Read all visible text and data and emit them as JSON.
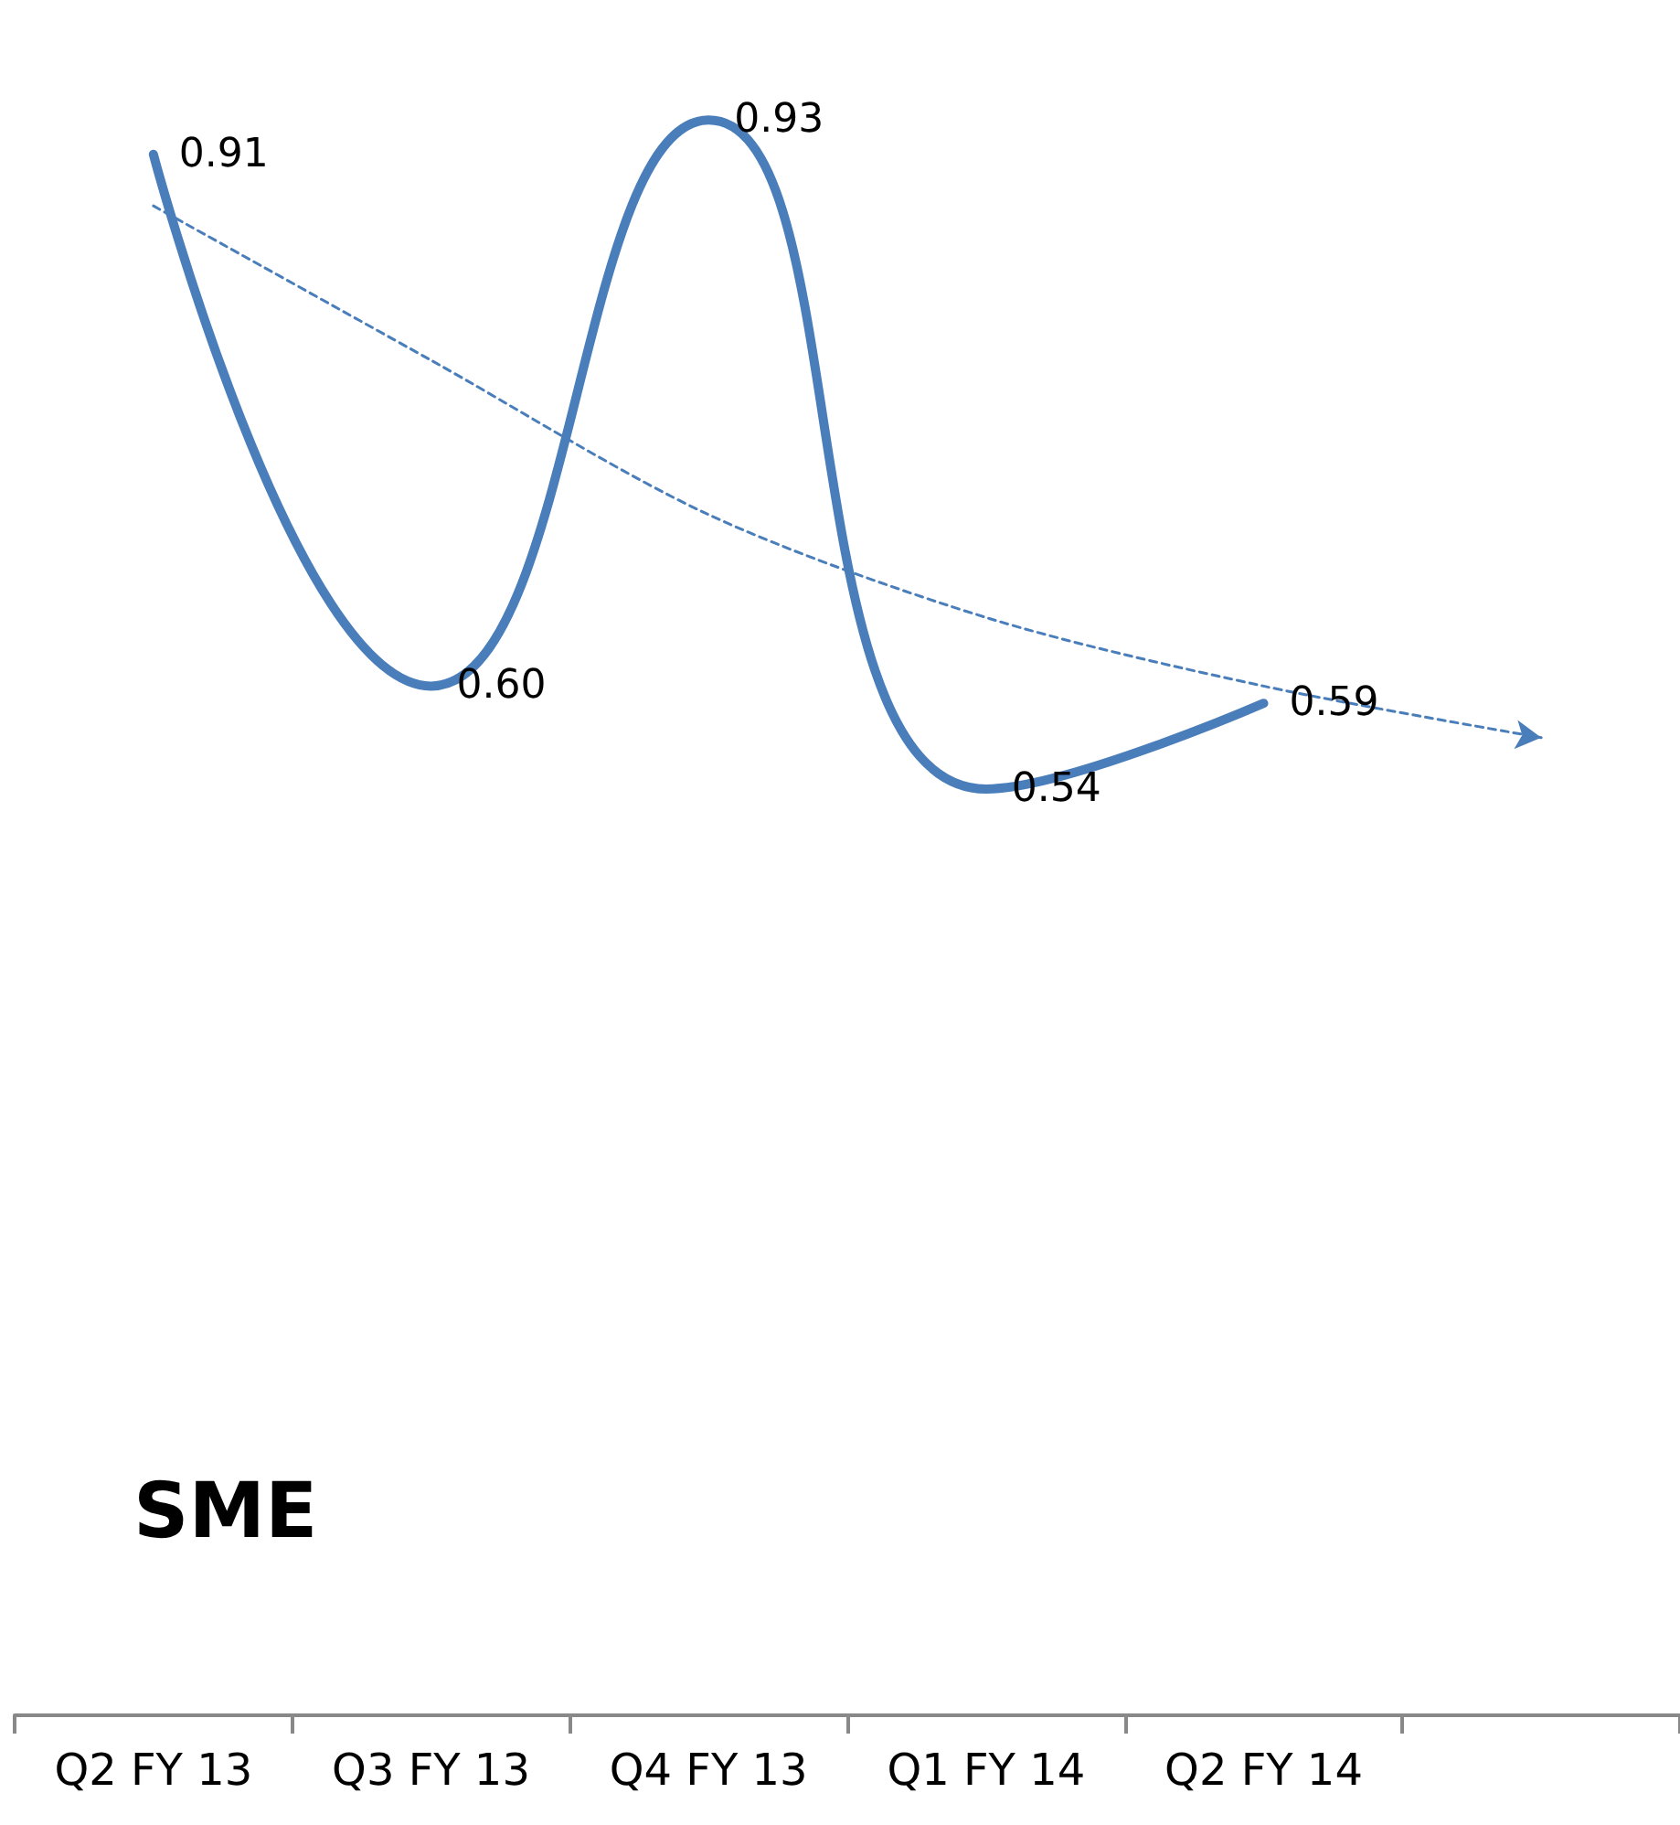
{
  "chart_data": {
    "type": "line",
    "title": "SME",
    "categories": [
      "Q2 FY 13",
      "Q3 FY 13",
      "Q4 FY 13",
      "Q1 FY 14",
      "Q2 FY 14",
      null
    ],
    "series": [
      {
        "color": "#4a7ebb",
        "values": [
          0.91,
          0.6,
          0.93,
          0.54,
          0.59,
          null
        ],
        "value_labels": [
          "0.91",
          "0.60",
          "0.93",
          "0.54",
          "0.59",
          null
        ]
      },
      {
        "color": "#4a7ebb",
        "line_style": "dashed",
        "values": [
          0.88,
          0.79,
          0.7,
          0.64,
          0.6,
          0.57
        ]
      }
    ],
    "tick_labels": "x",
    "grid": false,
    "marker": "none"
  }
}
